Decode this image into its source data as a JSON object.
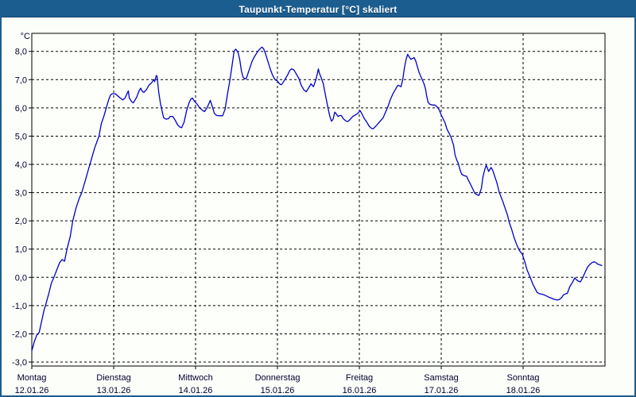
{
  "window": {
    "title": "Taupunkt-Temperatur [°C] skaliert",
    "title_bar_color": "#1c5d8f",
    "border_color": "#1c5d8f",
    "background_color": "#fcfefa"
  },
  "chart_data": {
    "type": "line",
    "title": "Taupunkt-Temperatur [°C] skaliert",
    "ylabel": "°C",
    "xlabel": "",
    "grid": {
      "style": "dashed",
      "color": "#000000",
      "on": true
    },
    "legend": "none",
    "line_color": "#0000c8",
    "text_color": "#00002d",
    "plot_background": "#fdfffb",
    "ylim": [
      -3.15,
      8.65
    ],
    "xlim_days": [
      0,
      7
    ],
    "y_ticks": [
      {
        "value": 8,
        "label": "8,0"
      },
      {
        "value": 7,
        "label": "7,0"
      },
      {
        "value": 6,
        "label": "6,0"
      },
      {
        "value": 5,
        "label": "5,0"
      },
      {
        "value": 4,
        "label": "4,0"
      },
      {
        "value": 3,
        "label": "3,0"
      },
      {
        "value": 2,
        "label": "2,0"
      },
      {
        "value": 1,
        "label": "1,0"
      },
      {
        "value": 0,
        "label": "0,0"
      },
      {
        "value": -1,
        "label": "-1,0"
      },
      {
        "value": -2,
        "label": "-2,0"
      },
      {
        "value": -3,
        "label": "-3,0"
      }
    ],
    "x_ticks": [
      {
        "day": 0,
        "weekday": "Montag",
        "date": "12.01.26"
      },
      {
        "day": 1,
        "weekday": "Dienstag",
        "date": "13.01.26"
      },
      {
        "day": 2,
        "weekday": "Mittwoch",
        "date": "14.01.26"
      },
      {
        "day": 3,
        "weekday": "Donnerstag",
        "date": "15.01.26"
      },
      {
        "day": 4,
        "weekday": "Freitag",
        "date": "16.01.26"
      },
      {
        "day": 5,
        "weekday": "Samstag",
        "date": "17.01.26"
      },
      {
        "day": 6,
        "weekday": "Sonntag",
        "date": "18.01.26"
      }
    ],
    "series": [
      {
        "name": "Taupunkt-Temperatur",
        "unit": "°C",
        "points": [
          [
            0.0,
            -2.6
          ],
          [
            0.03,
            -2.28
          ],
          [
            0.06,
            -2.05
          ],
          [
            0.09,
            -1.95
          ],
          [
            0.12,
            -1.55
          ],
          [
            0.15,
            -1.15
          ],
          [
            0.17,
            -0.97
          ],
          [
            0.21,
            -0.55
          ],
          [
            0.24,
            -0.2
          ],
          [
            0.27,
            0.0
          ],
          [
            0.31,
            0.3
          ],
          [
            0.34,
            0.52
          ],
          [
            0.37,
            0.63
          ],
          [
            0.4,
            0.57
          ],
          [
            0.43,
            1.0
          ],
          [
            0.47,
            1.45
          ],
          [
            0.5,
            2.0
          ],
          [
            0.54,
            2.45
          ],
          [
            0.58,
            2.8
          ],
          [
            0.61,
            3.0
          ],
          [
            0.63,
            3.2
          ],
          [
            0.65,
            3.4
          ],
          [
            0.68,
            3.7
          ],
          [
            0.71,
            4.0
          ],
          [
            0.74,
            4.3
          ],
          [
            0.77,
            4.6
          ],
          [
            0.82,
            5.0
          ],
          [
            0.85,
            5.45
          ],
          [
            0.88,
            5.7
          ],
          [
            0.91,
            6.0
          ],
          [
            0.94,
            6.3
          ],
          [
            0.96,
            6.45
          ],
          [
            0.98,
            6.5
          ],
          [
            1.02,
            6.5
          ],
          [
            1.05,
            6.42
          ],
          [
            1.08,
            6.35
          ],
          [
            1.11,
            6.28
          ],
          [
            1.14,
            6.35
          ],
          [
            1.17,
            6.55
          ],
          [
            1.18,
            6.6
          ],
          [
            1.19,
            6.35
          ],
          [
            1.22,
            6.22
          ],
          [
            1.24,
            6.18
          ],
          [
            1.28,
            6.37
          ],
          [
            1.31,
            6.6
          ],
          [
            1.33,
            6.7
          ],
          [
            1.35,
            6.58
          ],
          [
            1.37,
            6.55
          ],
          [
            1.4,
            6.65
          ],
          [
            1.43,
            6.8
          ],
          [
            1.46,
            6.88
          ],
          [
            1.49,
            7.0
          ],
          [
            1.5,
            6.93
          ],
          [
            1.52,
            7.15
          ],
          [
            1.53,
            7.1
          ],
          [
            1.55,
            6.55
          ],
          [
            1.57,
            6.18
          ],
          [
            1.59,
            5.9
          ],
          [
            1.61,
            5.65
          ],
          [
            1.64,
            5.6
          ],
          [
            1.67,
            5.62
          ],
          [
            1.69,
            5.7
          ],
          [
            1.72,
            5.7
          ],
          [
            1.75,
            5.57
          ],
          [
            1.78,
            5.4
          ],
          [
            1.81,
            5.32
          ],
          [
            1.83,
            5.3
          ],
          [
            1.86,
            5.5
          ],
          [
            1.89,
            5.9
          ],
          [
            1.92,
            6.18
          ],
          [
            1.94,
            6.3
          ],
          [
            1.96,
            6.35
          ],
          [
            1.99,
            6.22
          ],
          [
            2.02,
            6.13
          ],
          [
            2.05,
            6.0
          ],
          [
            2.09,
            5.9
          ],
          [
            2.11,
            5.87
          ],
          [
            2.14,
            6.0
          ],
          [
            2.17,
            6.2
          ],
          [
            2.18,
            6.27
          ],
          [
            2.21,
            6.0
          ],
          [
            2.23,
            5.8
          ],
          [
            2.26,
            5.73
          ],
          [
            2.3,
            5.72
          ],
          [
            2.33,
            5.72
          ],
          [
            2.36,
            5.95
          ],
          [
            2.39,
            6.5
          ],
          [
            2.42,
            7.0
          ],
          [
            2.45,
            7.6
          ],
          [
            2.47,
            8.0
          ],
          [
            2.49,
            8.08
          ],
          [
            2.5,
            8.05
          ],
          [
            2.52,
            7.95
          ],
          [
            2.54,
            7.7
          ],
          [
            2.56,
            7.3
          ],
          [
            2.58,
            7.1
          ],
          [
            2.6,
            7.02
          ],
          [
            2.62,
            7.05
          ],
          [
            2.65,
            7.3
          ],
          [
            2.69,
            7.65
          ],
          [
            2.72,
            7.82
          ],
          [
            2.76,
            8.0
          ],
          [
            2.79,
            8.1
          ],
          [
            2.81,
            8.15
          ],
          [
            2.83,
            8.1
          ],
          [
            2.85,
            7.95
          ],
          [
            2.88,
            7.68
          ],
          [
            2.91,
            7.4
          ],
          [
            2.94,
            7.16
          ],
          [
            2.97,
            7.0
          ],
          [
            3.0,
            6.95
          ],
          [
            3.03,
            6.84
          ],
          [
            3.05,
            6.82
          ],
          [
            3.09,
            7.0
          ],
          [
            3.13,
            7.2
          ],
          [
            3.15,
            7.32
          ],
          [
            3.17,
            7.38
          ],
          [
            3.2,
            7.35
          ],
          [
            3.23,
            7.2
          ],
          [
            3.26,
            7.05
          ],
          [
            3.29,
            6.8
          ],
          [
            3.32,
            6.65
          ],
          [
            3.35,
            6.57
          ],
          [
            3.38,
            6.7
          ],
          [
            3.41,
            6.85
          ],
          [
            3.44,
            6.75
          ],
          [
            3.47,
            7.0
          ],
          [
            3.49,
            7.25
          ],
          [
            3.5,
            7.38
          ],
          [
            3.51,
            7.25
          ],
          [
            3.53,
            7.1
          ],
          [
            3.56,
            6.85
          ],
          [
            3.58,
            6.55
          ],
          [
            3.6,
            6.25
          ],
          [
            3.62,
            5.95
          ],
          [
            3.64,
            5.7
          ],
          [
            3.66,
            5.53
          ],
          [
            3.68,
            5.6
          ],
          [
            3.7,
            5.85
          ],
          [
            3.72,
            5.78
          ],
          [
            3.74,
            5.7
          ],
          [
            3.76,
            5.73
          ],
          [
            3.78,
            5.73
          ],
          [
            3.81,
            5.6
          ],
          [
            3.84,
            5.53
          ],
          [
            3.86,
            5.52
          ],
          [
            3.89,
            5.6
          ],
          [
            3.92,
            5.7
          ],
          [
            3.95,
            5.75
          ],
          [
            3.98,
            5.8
          ],
          [
            4.0,
            5.87
          ],
          [
            4.01,
            5.9
          ],
          [
            4.03,
            5.8
          ],
          [
            4.06,
            5.62
          ],
          [
            4.09,
            5.5
          ],
          [
            4.12,
            5.35
          ],
          [
            4.15,
            5.27
          ],
          [
            4.17,
            5.26
          ],
          [
            4.2,
            5.35
          ],
          [
            4.23,
            5.45
          ],
          [
            4.26,
            5.55
          ],
          [
            4.29,
            5.65
          ],
          [
            4.32,
            5.85
          ],
          [
            4.35,
            6.05
          ],
          [
            4.38,
            6.3
          ],
          [
            4.41,
            6.5
          ],
          [
            4.44,
            6.65
          ],
          [
            4.47,
            6.8
          ],
          [
            4.49,
            6.78
          ],
          [
            4.51,
            6.75
          ],
          [
            4.53,
            7.0
          ],
          [
            4.55,
            7.4
          ],
          [
            4.57,
            7.7
          ],
          [
            4.59,
            7.9
          ],
          [
            4.61,
            7.8
          ],
          [
            4.63,
            7.72
          ],
          [
            4.65,
            7.75
          ],
          [
            4.67,
            7.78
          ],
          [
            4.69,
            7.65
          ],
          [
            4.71,
            7.45
          ],
          [
            4.73,
            7.25
          ],
          [
            4.76,
            7.05
          ],
          [
            4.79,
            6.85
          ],
          [
            4.81,
            6.65
          ],
          [
            4.82,
            6.45
          ],
          [
            4.84,
            6.2
          ],
          [
            4.86,
            6.13
          ],
          [
            4.89,
            6.1
          ],
          [
            4.92,
            6.1
          ],
          [
            4.94,
            6.07
          ],
          [
            4.96,
            6.0
          ],
          [
            4.98,
            5.9
          ],
          [
            5.0,
            5.75
          ],
          [
            5.02,
            5.63
          ],
          [
            5.05,
            5.45
          ],
          [
            5.07,
            5.25
          ],
          [
            5.1,
            5.08
          ],
          [
            5.12,
            4.96
          ],
          [
            5.15,
            4.68
          ],
          [
            5.17,
            4.32
          ],
          [
            5.19,
            4.15
          ],
          [
            5.21,
            4.03
          ],
          [
            5.23,
            3.8
          ],
          [
            5.25,
            3.65
          ],
          [
            5.28,
            3.6
          ],
          [
            5.31,
            3.58
          ],
          [
            5.33,
            3.45
          ],
          [
            5.36,
            3.28
          ],
          [
            5.39,
            3.1
          ],
          [
            5.41,
            2.98
          ],
          [
            5.44,
            2.92
          ],
          [
            5.46,
            2.9
          ],
          [
            5.49,
            3.15
          ],
          [
            5.51,
            3.56
          ],
          [
            5.53,
            3.8
          ],
          [
            5.55,
            3.97
          ],
          [
            5.58,
            3.75
          ],
          [
            5.61,
            3.89
          ],
          [
            5.63,
            3.78
          ],
          [
            5.65,
            3.6
          ],
          [
            5.68,
            3.35
          ],
          [
            5.71,
            3.0
          ],
          [
            5.73,
            2.85
          ],
          [
            5.75,
            2.7
          ],
          [
            5.78,
            2.45
          ],
          [
            5.81,
            2.2
          ],
          [
            5.83,
            1.95
          ],
          [
            5.86,
            1.7
          ],
          [
            5.89,
            1.4
          ],
          [
            5.92,
            1.17
          ],
          [
            5.95,
            0.97
          ],
          [
            5.97,
            0.89
          ],
          [
            5.99,
            0.82
          ],
          [
            6.02,
            0.55
          ],
          [
            6.05,
            0.25
          ],
          [
            6.08,
            0.05
          ],
          [
            6.1,
            -0.1
          ],
          [
            6.12,
            -0.25
          ],
          [
            6.15,
            -0.42
          ],
          [
            6.17,
            -0.53
          ],
          [
            6.2,
            -0.58
          ],
          [
            6.23,
            -0.6
          ],
          [
            6.26,
            -0.62
          ],
          [
            6.29,
            -0.67
          ],
          [
            6.32,
            -0.71
          ],
          [
            6.35,
            -0.74
          ],
          [
            6.38,
            -0.78
          ],
          [
            6.41,
            -0.8
          ],
          [
            6.44,
            -0.79
          ],
          [
            6.47,
            -0.72
          ],
          [
            6.49,
            -0.63
          ],
          [
            6.52,
            -0.58
          ],
          [
            6.54,
            -0.57
          ],
          [
            6.57,
            -0.33
          ],
          [
            6.6,
            -0.19
          ],
          [
            6.62,
            -0.08
          ],
          [
            6.63,
            -0.02
          ],
          [
            6.65,
            -0.08
          ],
          [
            6.67,
            -0.13
          ],
          [
            6.7,
            -0.16
          ],
          [
            6.73,
            0.0
          ],
          [
            6.76,
            0.2
          ],
          [
            6.79,
            0.38
          ],
          [
            6.82,
            0.47
          ],
          [
            6.84,
            0.52
          ],
          [
            6.87,
            0.55
          ],
          [
            6.89,
            0.52
          ],
          [
            6.91,
            0.47
          ],
          [
            6.94,
            0.44
          ],
          [
            6.96,
            0.42
          ]
        ]
      }
    ]
  }
}
